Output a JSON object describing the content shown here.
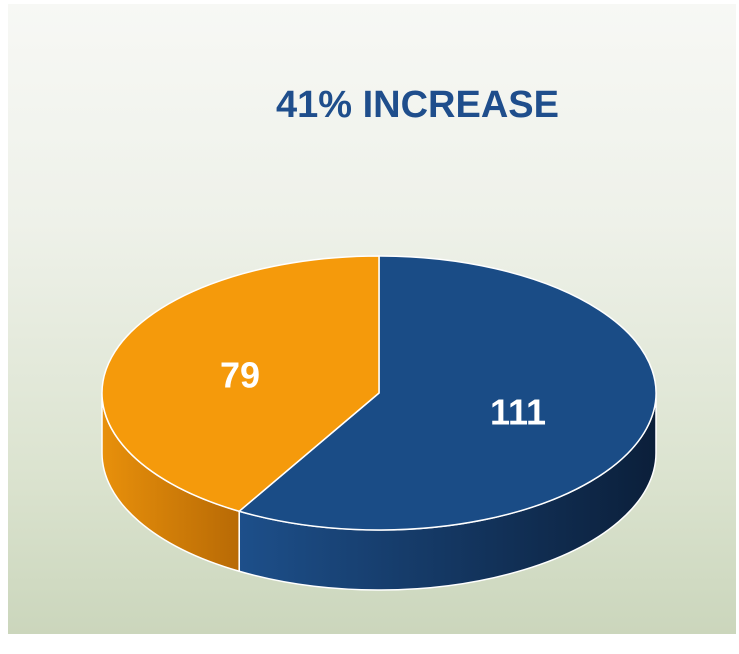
{
  "chart_data": {
    "type": "pie",
    "title": "41% INCREASE",
    "slices": [
      {
        "label": "111",
        "value": 111,
        "color": "#1a4c86"
      },
      {
        "label": "79",
        "value": 79,
        "color": "#f59a0b"
      }
    ]
  }
}
